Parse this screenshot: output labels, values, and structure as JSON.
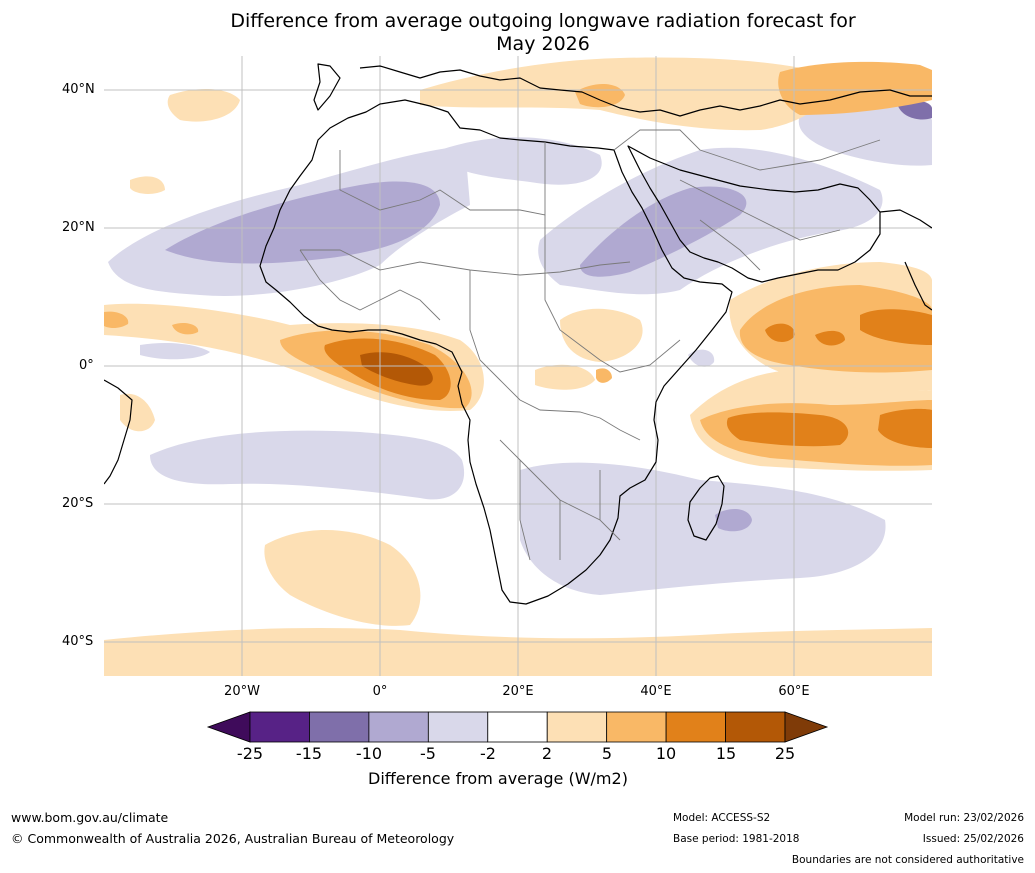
{
  "title_line1": "Difference from average outgoing longwave radiation forecast for",
  "title_line2": "May 2026",
  "lat_labels": [
    "40°N",
    "20°N",
    "0°",
    "20°S",
    "40°S"
  ],
  "lon_labels": [
    "20°W",
    "0°",
    "20°E",
    "40°E",
    "60°E"
  ],
  "colorbar": {
    "title": "Difference from average (W/m2)",
    "ticks": [
      "-25",
      "-15",
      "-10",
      "-5",
      "-2",
      "2",
      "5",
      "10",
      "15",
      "25"
    ],
    "colors": [
      "#3f0b5b",
      "#572286",
      "#7f6faa",
      "#b0a9d1",
      "#d9d8ea",
      "#ffffff",
      "#fde0b5",
      "#f9b866",
      "#e1811a",
      "#b35806",
      "#7f3b08"
    ]
  },
  "footer": {
    "website": "www.bom.gov.au/climate",
    "copyright": "© Commonwealth of Australia 2026, Australian Bureau of Meteorology",
    "model": "Model: ACCESS-S2",
    "base_period": "Base period: 1981-2018",
    "model_run": "Model run: 23/02/2026",
    "issued": "Issued: 25/02/2026",
    "disclaimer": "Boundaries are not considered authoritative"
  }
}
